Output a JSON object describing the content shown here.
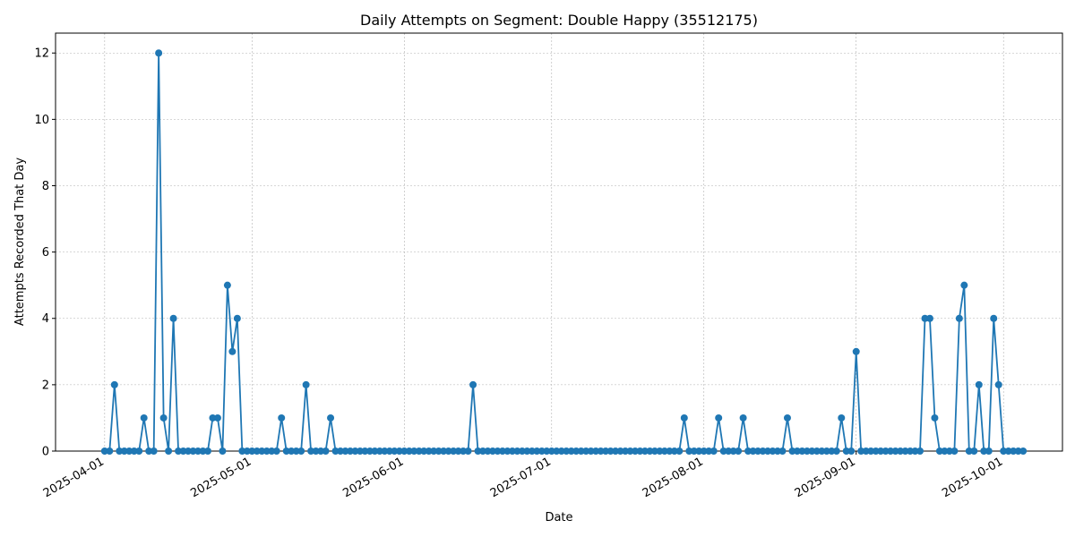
{
  "chart_data": {
    "type": "line",
    "title": "Daily Attempts on Segment: Double Happy (35512175)",
    "xlabel": "Date",
    "ylabel": "Attempts Recorded That Day",
    "x_type": "date",
    "start_date": "2025-04-01",
    "xlim": [
      "2025-03-22",
      "2025-10-13"
    ],
    "ylim": [
      0,
      12.6
    ],
    "x_ticks": [
      "2025-04-01",
      "2025-05-01",
      "2025-06-01",
      "2025-07-01",
      "2025-08-01",
      "2025-09-01",
      "2025-10-01"
    ],
    "y_ticks": [
      0,
      2,
      4,
      6,
      8,
      10,
      12
    ],
    "grid": true,
    "line_color": "#1f77b4",
    "marker": "circle",
    "series": [
      {
        "name": "",
        "values": [
          0,
          0,
          2,
          0,
          0,
          0,
          0,
          0,
          1,
          0,
          0,
          12,
          1,
          0,
          4,
          0,
          0,
          0,
          0,
          0,
          0,
          0,
          1,
          1,
          0,
          5,
          3,
          4,
          0,
          0,
          0,
          0,
          0,
          0,
          0,
          0,
          1,
          0,
          0,
          0,
          0,
          2,
          0,
          0,
          0,
          0,
          1,
          0,
          0,
          0,
          0,
          0,
          0,
          0,
          0,
          0,
          0,
          0,
          0,
          0,
          0,
          0,
          0,
          0,
          0,
          0,
          0,
          0,
          0,
          0,
          0,
          0,
          0,
          0,
          0,
          2,
          0,
          0,
          0,
          0,
          0,
          0,
          0,
          0,
          0,
          0,
          0,
          0,
          0,
          0,
          0,
          0,
          0,
          0,
          0,
          0,
          0,
          0,
          0,
          0,
          0,
          0,
          0,
          0,
          0,
          0,
          0,
          0,
          0,
          0,
          0,
          0,
          0,
          0,
          0,
          0,
          0,
          0,
          1,
          0,
          0,
          0,
          0,
          0,
          0,
          1,
          0,
          0,
          0,
          0,
          1,
          0,
          0,
          0,
          0,
          0,
          0,
          0,
          0,
          1,
          0,
          0,
          0,
          0,
          0,
          0,
          0,
          0,
          0,
          0,
          1,
          0,
          0,
          3,
          0,
          0,
          0,
          0,
          0,
          0,
          0,
          0,
          0,
          0,
          0,
          0,
          0,
          4,
          4,
          1,
          0,
          0,
          0,
          0,
          4,
          5,
          0,
          0,
          2,
          0,
          0,
          4,
          2,
          0,
          0,
          0,
          0,
          0
        ]
      }
    ]
  }
}
